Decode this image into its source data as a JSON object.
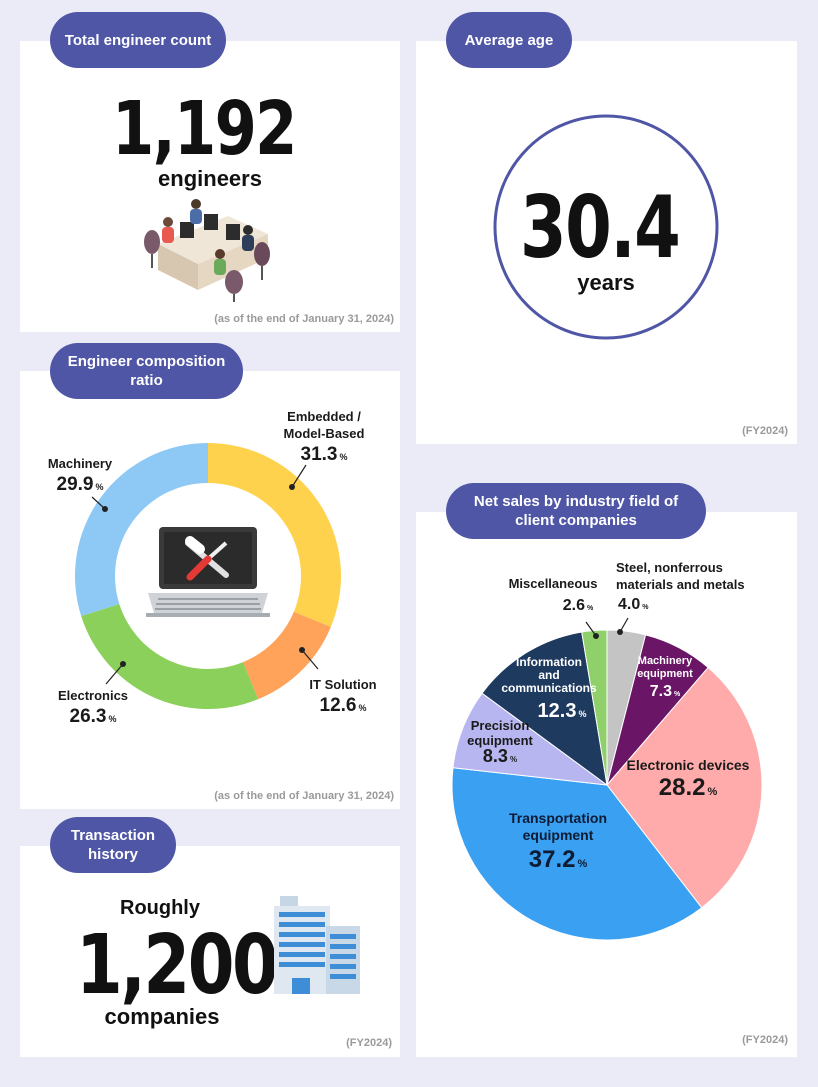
{
  "total": {
    "pill": "Total engineer count",
    "value": "1,192",
    "unit": "engineers",
    "note": "(as of the end of January 31, 2024)"
  },
  "age": {
    "pill": "Average age",
    "value": "30.4",
    "unit": "years",
    "note": "(FY2024)"
  },
  "composition": {
    "pill": "Engineer composition ratio",
    "note": "(as of the end of January 31, 2024)"
  },
  "transactions": {
    "pill": "Transaction history",
    "prefix": "Roughly",
    "value": "1,200",
    "unit": "companies",
    "note": "(FY2024)"
  },
  "sales": {
    "pill": "Net sales by industry field of client companies",
    "note": "(FY2024)"
  },
  "chart_data": [
    {
      "type": "pie",
      "variant": "donut",
      "title": "Engineer composition ratio",
      "unit": "%",
      "categories": [
        "Embedded / Model-Based",
        "IT Solution",
        "Electronics",
        "Machinery"
      ],
      "values": [
        31.3,
        12.6,
        26.3,
        29.9
      ],
      "colors": [
        "#ffd24d",
        "#ffa25a",
        "#8bd05a",
        "#8ec8f5"
      ]
    },
    {
      "type": "pie",
      "title": "Net sales by industry field of client companies",
      "unit": "%",
      "categories": [
        "Steel, nonferrous materials and metals",
        "Machinery equipment",
        "Electronic devices",
        "Transportation equipment",
        "Precision equipment",
        "Information and communications",
        "Miscellaneous"
      ],
      "values": [
        4.0,
        7.3,
        28.2,
        37.2,
        8.3,
        12.3,
        2.6
      ],
      "colors": [
        "#c4c4c4",
        "#6a1566",
        "#ffabab",
        "#3aa0f2",
        "#b7b6f0",
        "#1e3a5f",
        "#8fd06b"
      ]
    }
  ]
}
